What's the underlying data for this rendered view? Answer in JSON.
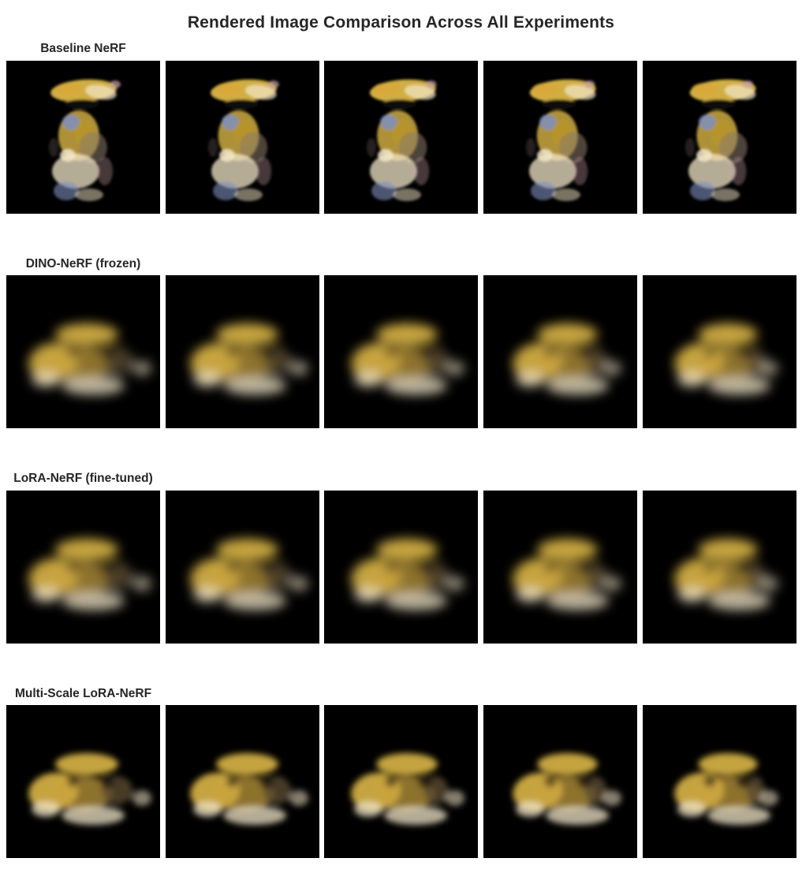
{
  "figure": {
    "title": "Rendered Image Comparison Across All Experiments"
  },
  "rows": [
    {
      "title": "Baseline NeRF",
      "style": "sharp",
      "views": 5
    },
    {
      "title": "DINO-NeRF (frozen)",
      "style": "blurry",
      "views": 5
    },
    {
      "title": "LoRA-NeRF (fine-tuned)",
      "style": "blurry",
      "views": 5
    },
    {
      "title": "Multi-Scale LoRA-NeRF",
      "style": "blurry",
      "views": 5
    }
  ],
  "colors": {
    "background": "#ffffff",
    "panel_background": "#000000",
    "render_gold": "#e8c14a",
    "render_cream": "#f2e6c8",
    "render_blue": "#7f8fbf",
    "render_pink": "#c9a0a8"
  }
}
